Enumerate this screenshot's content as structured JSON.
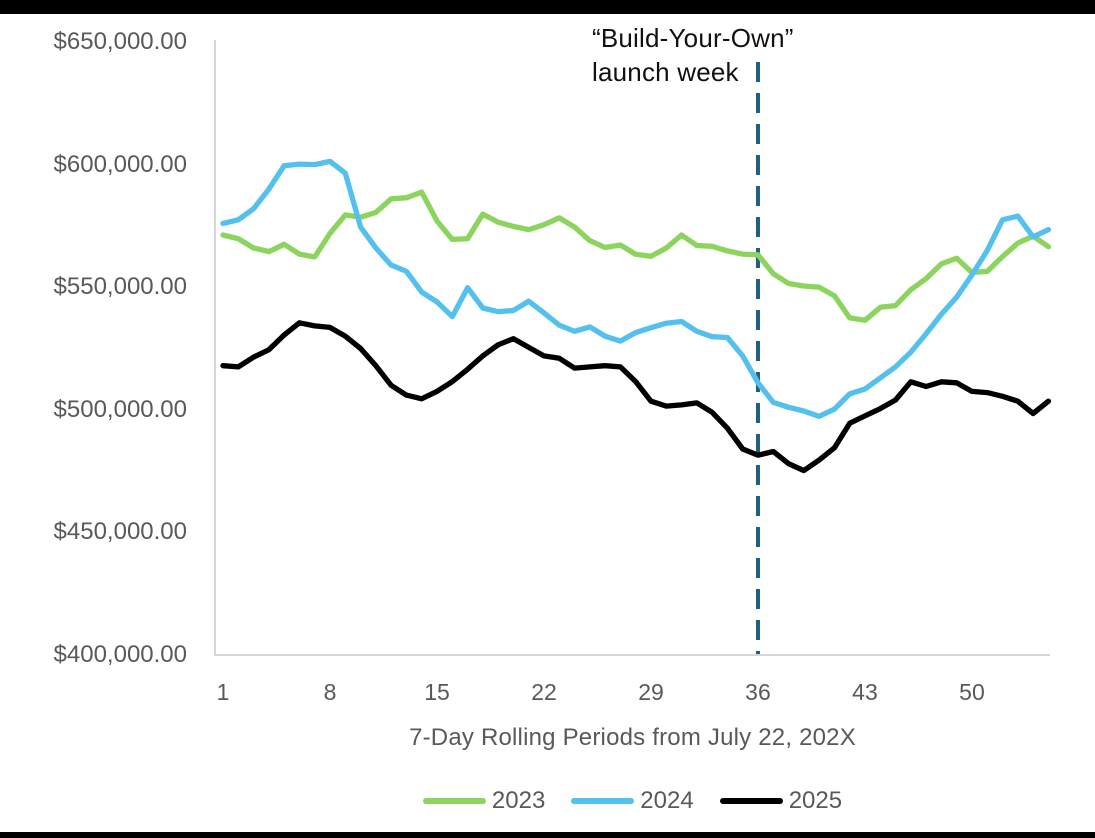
{
  "page": {
    "background": "#FFFFFF",
    "letterbox_color": "#000000"
  },
  "annotation": {
    "line1": "“Build-Your-Own”",
    "line2": "launch week"
  },
  "x_axis": {
    "title": "7-Day Rolling Periods from July 22, 202X",
    "ticks": [
      1,
      8,
      15,
      22,
      29,
      36,
      43,
      50
    ]
  },
  "y_axis": {
    "ticks": [
      {
        "label": "$650,000.00",
        "value": 650000
      },
      {
        "label": "$600,000.00",
        "value": 600000
      },
      {
        "label": "$550,000.00",
        "value": 550000
      },
      {
        "label": "$500,000.00",
        "value": 500000
      },
      {
        "label": "$450,000.00",
        "value": 450000
      },
      {
        "label": "$400,000.00",
        "value": 400000
      }
    ]
  },
  "legend": {
    "items": [
      "2023",
      "2024",
      "2025"
    ],
    "position": "bottom"
  },
  "colors": {
    "axis_line": "#D6D6D6",
    "tick_text": "#595959",
    "annotation_text": "#111111",
    "event_line": "#20607F",
    "series_2023": "#8CD45E",
    "series_2024": "#54C0EE",
    "series_2025": "#000000"
  },
  "chart_data": {
    "type": "line",
    "title": "",
    "xlabel": "7-Day Rolling Periods from July 22, 202X",
    "ylabel": "",
    "xlim": [
      1,
      55
    ],
    "ylim": [
      400000,
      650000
    ],
    "y_tick_step": 50000,
    "grid": false,
    "legend_position": "bottom",
    "event_line": {
      "x": 36,
      "label": "“Build-Your-Own” launch week",
      "style": "dashed",
      "color": "#20607F"
    },
    "x": [
      1,
      2,
      3,
      4,
      5,
      6,
      7,
      8,
      9,
      10,
      11,
      12,
      13,
      14,
      15,
      16,
      17,
      18,
      19,
      20,
      21,
      22,
      23,
      24,
      25,
      26,
      27,
      28,
      29,
      30,
      31,
      32,
      33,
      34,
      35,
      36,
      37,
      38,
      39,
      40,
      41,
      42,
      43,
      44,
      45,
      46,
      47,
      48,
      49,
      50,
      51,
      52,
      53,
      54,
      55
    ],
    "series": [
      {
        "name": "2023",
        "color": "#8CD45E",
        "values": [
          571300,
          569800,
          566000,
          564500,
          567500,
          563500,
          562300,
          572000,
          579500,
          578500,
          580500,
          586000,
          586500,
          588800,
          577000,
          569500,
          569800,
          579800,
          576500,
          574800,
          573500,
          575500,
          578300,
          574500,
          569000,
          566200,
          567200,
          563400,
          562600,
          566000,
          571300,
          567000,
          566700,
          564800,
          563500,
          563200,
          555500,
          551500,
          550500,
          550000,
          546500,
          537500,
          536500,
          541800,
          542500,
          549000,
          553500,
          559500,
          561800,
          556000,
          556500,
          562500,
          568000,
          570800,
          566500
        ]
      },
      {
        "name": "2024",
        "color": "#54C0EE",
        "values": [
          576000,
          577500,
          582000,
          590000,
          599500,
          600200,
          600000,
          601300,
          596500,
          574500,
          566000,
          559000,
          556500,
          548000,
          544000,
          538000,
          549800,
          541500,
          540000,
          540500,
          544300,
          539500,
          534500,
          532000,
          533800,
          530000,
          528000,
          531500,
          533500,
          535300,
          536000,
          532000,
          529800,
          529500,
          522000,
          511000,
          503000,
          501000,
          499500,
          497300,
          500300,
          506500,
          508500,
          513000,
          517500,
          523500,
          531000,
          539000,
          546000,
          555000,
          565000,
          577500,
          579000,
          570500,
          573500
        ]
      },
      {
        "name": "2025",
        "color": "#000000",
        "values": [
          518000,
          517500,
          521500,
          524500,
          530500,
          535500,
          534200,
          533600,
          530000,
          525000,
          518000,
          510000,
          506000,
          504500,
          507500,
          511500,
          516500,
          522000,
          526500,
          529000,
          525500,
          522000,
          521000,
          517000,
          517500,
          518000,
          517500,
          511500,
          503500,
          501500,
          502000,
          502800,
          499000,
          492500,
          484000,
          481500,
          483000,
          478000,
          475200,
          479500,
          484500,
          494500,
          497500,
          500500,
          504000,
          511400,
          509500,
          511400,
          511000,
          507500,
          507000,
          505500,
          503500,
          498500,
          503500
        ]
      }
    ]
  }
}
